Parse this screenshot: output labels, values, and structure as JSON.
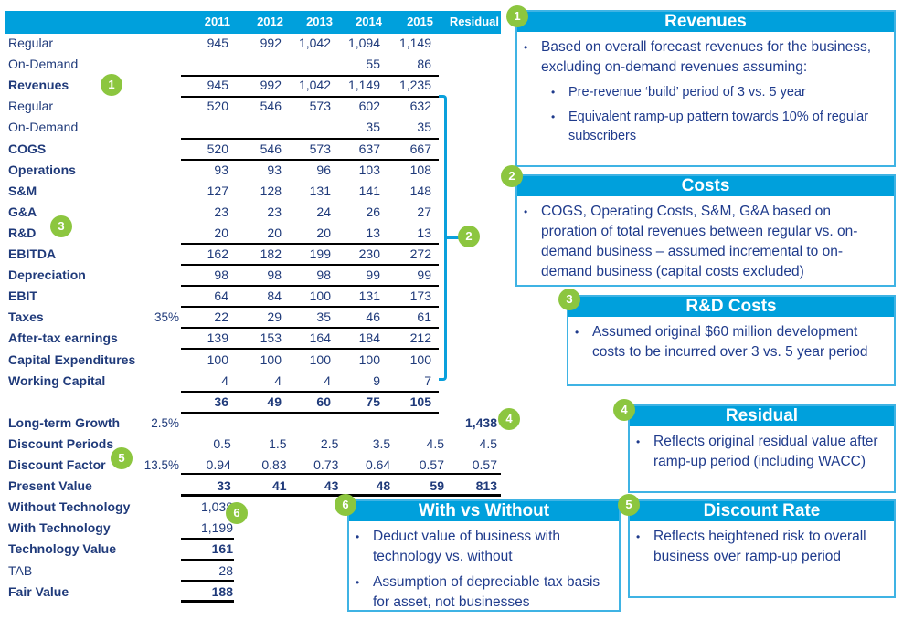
{
  "colors": {
    "header": "#00a0dc",
    "badge": "#8cc63f",
    "text": "#1f3a7a"
  },
  "header": {
    "years": [
      "2011",
      "2012",
      "2013",
      "2014",
      "2015"
    ],
    "residual": "Residual"
  },
  "rows": [
    {
      "label": "Regular",
      "pct": "",
      "values": [
        "945",
        "992",
        "1,042",
        "1,094",
        "1,149"
      ],
      "residual": ""
    },
    {
      "label": "On-Demand",
      "pct": "",
      "values": [
        "",
        "",
        "",
        "55",
        "86"
      ],
      "residual": ""
    },
    {
      "label": "Revenues",
      "pct": "",
      "values": [
        "945",
        "992",
        "1,042",
        "1,149",
        "1,235"
      ],
      "residual": ""
    },
    {
      "label": "Regular",
      "pct": "",
      "values": [
        "520",
        "546",
        "573",
        "602",
        "632"
      ],
      "residual": ""
    },
    {
      "label": "On-Demand",
      "pct": "",
      "values": [
        "",
        "",
        "",
        "35",
        "35"
      ],
      "residual": ""
    },
    {
      "label": "COGS",
      "pct": "",
      "values": [
        "520",
        "546",
        "573",
        "637",
        "667"
      ],
      "residual": ""
    },
    {
      "label": "Operations",
      "pct": "",
      "values": [
        "93",
        "93",
        "96",
        "103",
        "108"
      ],
      "residual": ""
    },
    {
      "label": "S&M",
      "pct": "",
      "values": [
        "127",
        "128",
        "131",
        "141",
        "148"
      ],
      "residual": ""
    },
    {
      "label": "G&A",
      "pct": "",
      "values": [
        "23",
        "23",
        "24",
        "26",
        "27"
      ],
      "residual": ""
    },
    {
      "label": "R&D",
      "pct": "",
      "values": [
        "20",
        "20",
        "20",
        "13",
        "13"
      ],
      "residual": ""
    },
    {
      "label": "EBITDA",
      "pct": "",
      "values": [
        "162",
        "182",
        "199",
        "230",
        "272"
      ],
      "residual": ""
    },
    {
      "label": "Depreciation",
      "pct": "",
      "values": [
        "98",
        "98",
        "98",
        "99",
        "99"
      ],
      "residual": ""
    },
    {
      "label": "EBIT",
      "pct": "",
      "values": [
        "64",
        "84",
        "100",
        "131",
        "173"
      ],
      "residual": ""
    },
    {
      "label": "Taxes",
      "pct": "35%",
      "values": [
        "22",
        "29",
        "35",
        "46",
        "61"
      ],
      "residual": ""
    },
    {
      "label": "After-tax earnings",
      "pct": "",
      "values": [
        "139",
        "153",
        "164",
        "184",
        "212"
      ],
      "residual": ""
    },
    {
      "label": "Capital Expenditures",
      "pct": "",
      "values": [
        "100",
        "100",
        "100",
        "100",
        "100"
      ],
      "residual": ""
    },
    {
      "label": "Working Capital",
      "pct": "",
      "values": [
        "4",
        "4",
        "4",
        "9",
        "7"
      ],
      "residual": ""
    },
    {
      "label": "",
      "pct": "",
      "values": [
        "36",
        "49",
        "60",
        "75",
        "105"
      ],
      "residual": ""
    },
    {
      "label": "Long-term Growth",
      "pct": "2.5%",
      "values": [
        "",
        "",
        "",
        "",
        ""
      ],
      "residual": "1,438"
    },
    {
      "label": "Discount Periods",
      "pct": "",
      "values": [
        "0.5",
        "1.5",
        "2.5",
        "3.5",
        "4.5"
      ],
      "residual": "4.5"
    },
    {
      "label": "Discount Factor",
      "pct": "13.5%",
      "values": [
        "0.94",
        "0.83",
        "0.73",
        "0.64",
        "0.57"
      ],
      "residual": "0.57"
    },
    {
      "label": "Present Value",
      "pct": "",
      "values": [
        "33",
        "41",
        "43",
        "48",
        "59"
      ],
      "residual": "813"
    },
    {
      "label": "Without Technology",
      "pct": "",
      "values": [
        "1,038",
        "",
        "",
        "",
        ""
      ],
      "residual": ""
    },
    {
      "label": "With Technology",
      "pct": "",
      "values": [
        "1,199",
        "",
        "",
        "",
        ""
      ],
      "residual": ""
    },
    {
      "label": "Technology Value",
      "pct": "",
      "values": [
        "161",
        "",
        "",
        "",
        ""
      ],
      "residual": ""
    },
    {
      "label": "TAB",
      "pct": "",
      "values": [
        "28",
        "",
        "",
        "",
        ""
      ],
      "residual": ""
    },
    {
      "label": "Fair Value",
      "pct": "",
      "values": [
        "188",
        "",
        "",
        "",
        ""
      ],
      "residual": ""
    }
  ],
  "boxes": {
    "revenues": {
      "badge": "1",
      "title": "Revenues",
      "bullets": [
        "Based on overall forecast revenues for the business, excluding on-demand revenues assuming:"
      ],
      "sub": [
        "Pre-revenue ‘build’ period of 3 vs. 5 year",
        "Equivalent ramp-up pattern towards 10% of regular subscribers"
      ]
    },
    "costs": {
      "badge": "2",
      "title": "Costs",
      "bullets": [
        "COGS, Operating Costs, S&M, G&A based on proration of total revenues between regular vs. on-demand business – assumed incremental to on-demand business (capital costs excluded)"
      ]
    },
    "rd": {
      "badge": "3",
      "title": "R&D Costs",
      "bullets": [
        "Assumed original $60 million development costs to be incurred over 3 vs. 5 year period"
      ]
    },
    "residual": {
      "badge": "4",
      "title": "Residual",
      "bullets": [
        "Reflects original residual value after ramp-up period (including WACC)"
      ]
    },
    "discount": {
      "badge": "5",
      "title": "Discount Rate",
      "bullets": [
        "Reflects heightened risk to overall business over ramp-up period"
      ]
    },
    "withwithout": {
      "badge": "6",
      "title": "With vs Without",
      "bullets": [
        "Deduct value of business with technology vs. without",
        "Assumption of depreciable tax basis for asset, not businesses"
      ]
    }
  }
}
